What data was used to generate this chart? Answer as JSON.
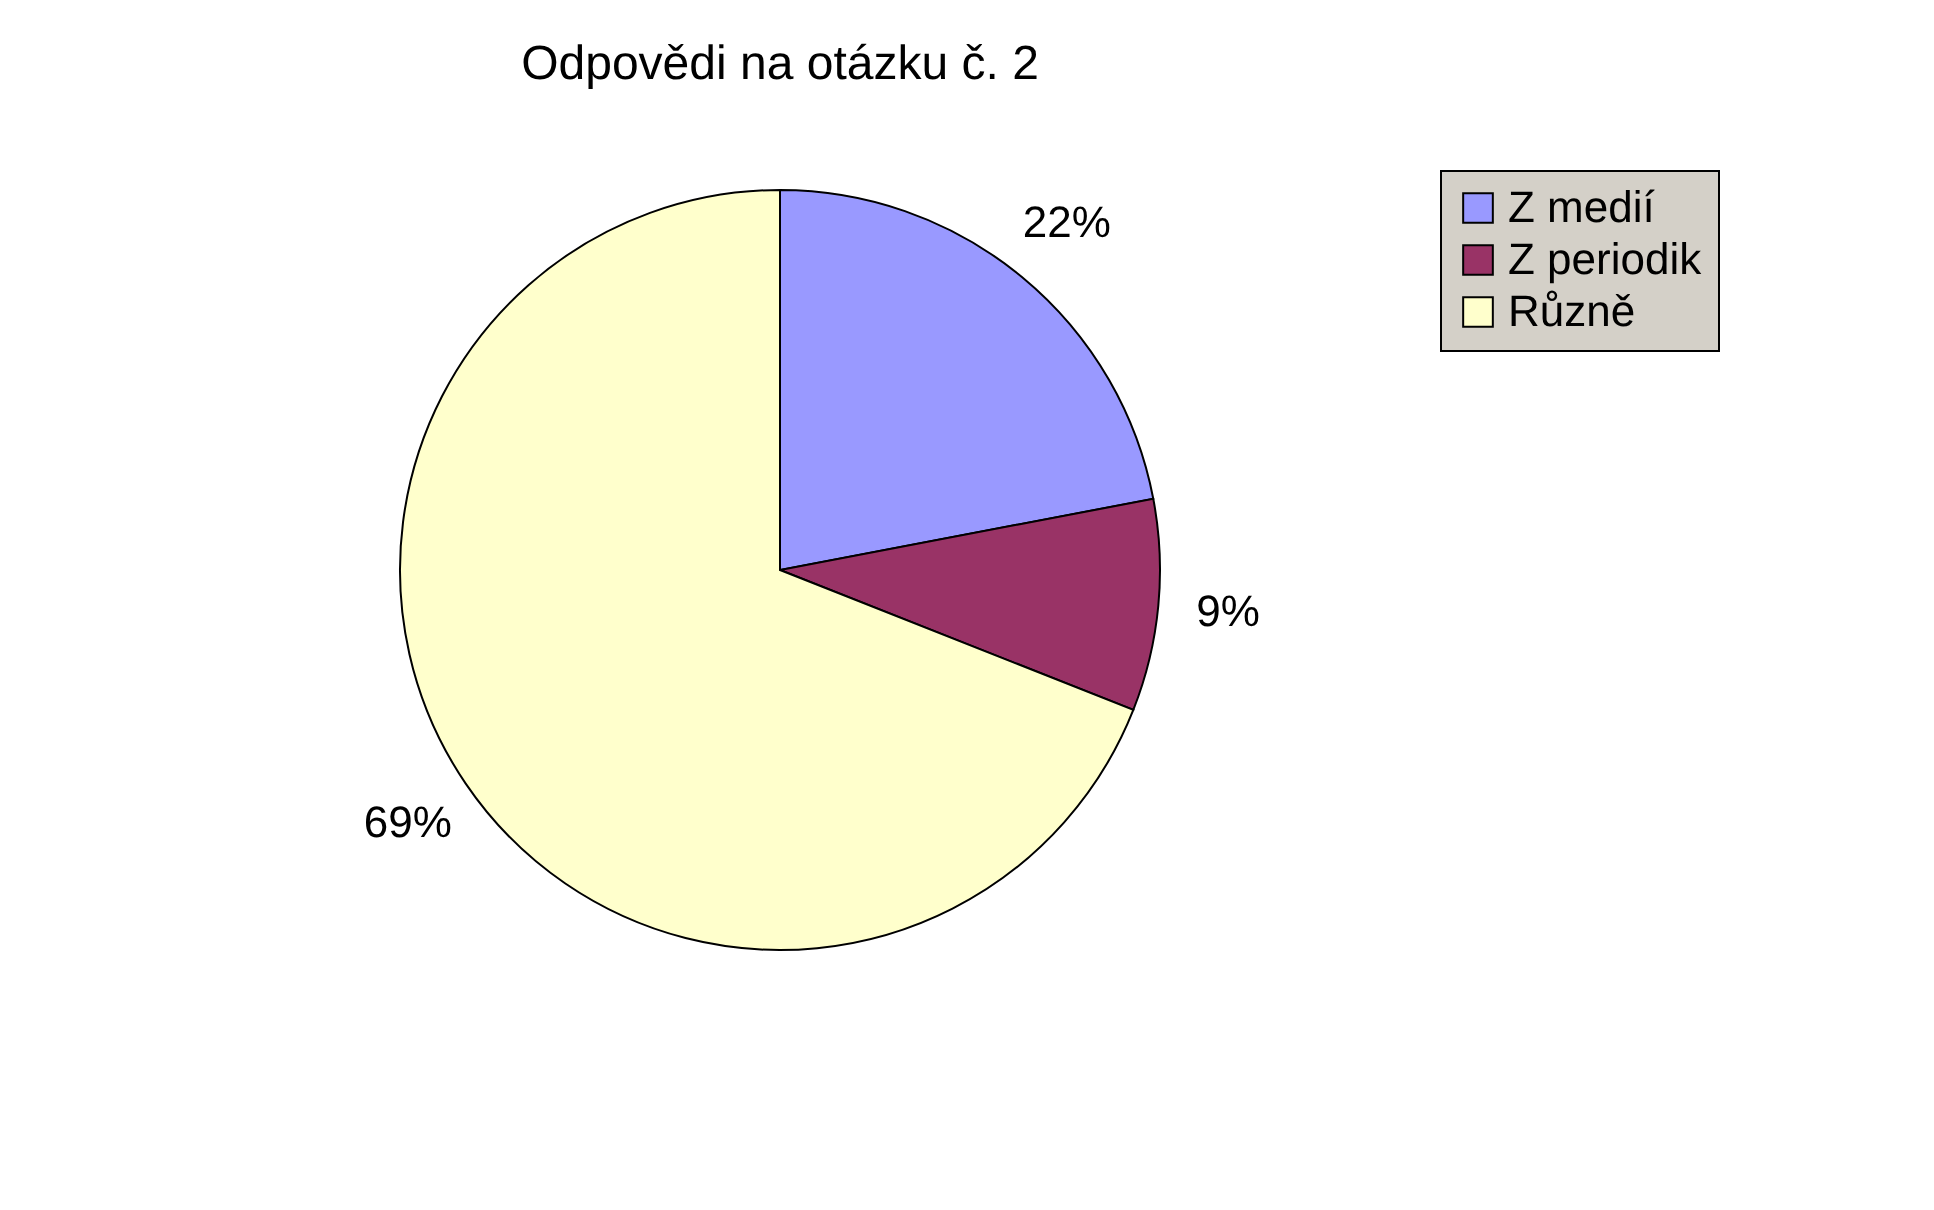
{
  "chart_data": {
    "type": "pie",
    "title": "Odpovědi na otázku č. 2",
    "categories": [
      "Z medií",
      "Z periodik",
      "Různě"
    ],
    "values": [
      22,
      9,
      69
    ],
    "colors": [
      "#9999ff",
      "#993366",
      "#ffffcc"
    ],
    "value_labels": [
      "22%",
      "9%",
      "69%"
    ],
    "legend": "right"
  }
}
